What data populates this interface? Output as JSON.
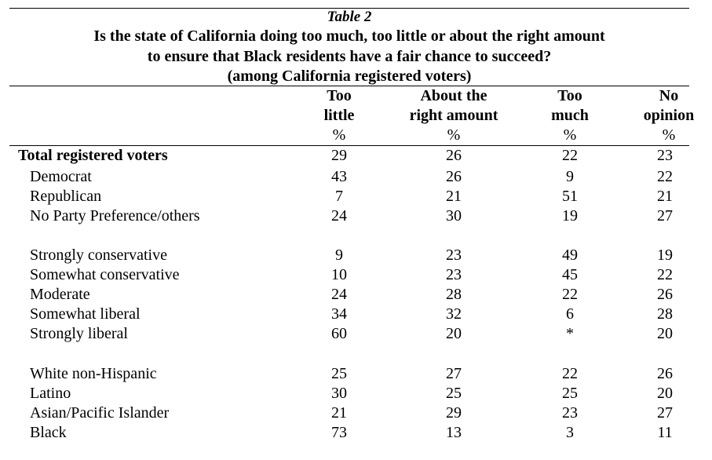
{
  "table": {
    "label": "Table 2",
    "title_lines": [
      "Is the state of California doing too much, too little or about the right amount",
      "to ensure that Black residents have a fair chance to succeed?",
      "(among California registered voters)"
    ],
    "columns": [
      {
        "lines": [
          "Too",
          "little"
        ],
        "unit": "%"
      },
      {
        "lines": [
          "About the",
          "right amount"
        ],
        "unit": "%"
      },
      {
        "lines": [
          "Too",
          "much"
        ],
        "unit": "%"
      },
      {
        "lines": [
          "No",
          "opinion"
        ],
        "unit": "%"
      }
    ],
    "total_row": {
      "label": "Total registered voters",
      "values": [
        "29",
        "26",
        "22",
        "23"
      ]
    },
    "groups": [
      [
        {
          "label": "Democrat",
          "values": [
            "43",
            "26",
            "9",
            "22"
          ]
        },
        {
          "label": "Republican",
          "values": [
            "7",
            "21",
            "51",
            "21"
          ]
        },
        {
          "label": "No Party Preference/others",
          "values": [
            "24",
            "30",
            "19",
            "27"
          ]
        }
      ],
      [
        {
          "label": "Strongly conservative",
          "values": [
            "9",
            "23",
            "49",
            "19"
          ]
        },
        {
          "label": "Somewhat conservative",
          "values": [
            "10",
            "23",
            "45",
            "22"
          ]
        },
        {
          "label": "Moderate",
          "values": [
            "24",
            "28",
            "22",
            "26"
          ]
        },
        {
          "label": "Somewhat liberal",
          "values": [
            "34",
            "32",
            "6",
            "28"
          ]
        },
        {
          "label": "Strongly liberal",
          "values": [
            "60",
            "20",
            "*",
            "20"
          ]
        }
      ],
      [
        {
          "label": "White non-Hispanic",
          "values": [
            "25",
            "27",
            "22",
            "26"
          ]
        },
        {
          "label": "Latino",
          "values": [
            "30",
            "25",
            "25",
            "20"
          ]
        },
        {
          "label": "Asian/Pacific Islander",
          "values": [
            "21",
            "29",
            "23",
            "27"
          ]
        },
        {
          "label": "Black",
          "values": [
            "73",
            "13",
            "3",
            "11"
          ]
        }
      ]
    ]
  }
}
